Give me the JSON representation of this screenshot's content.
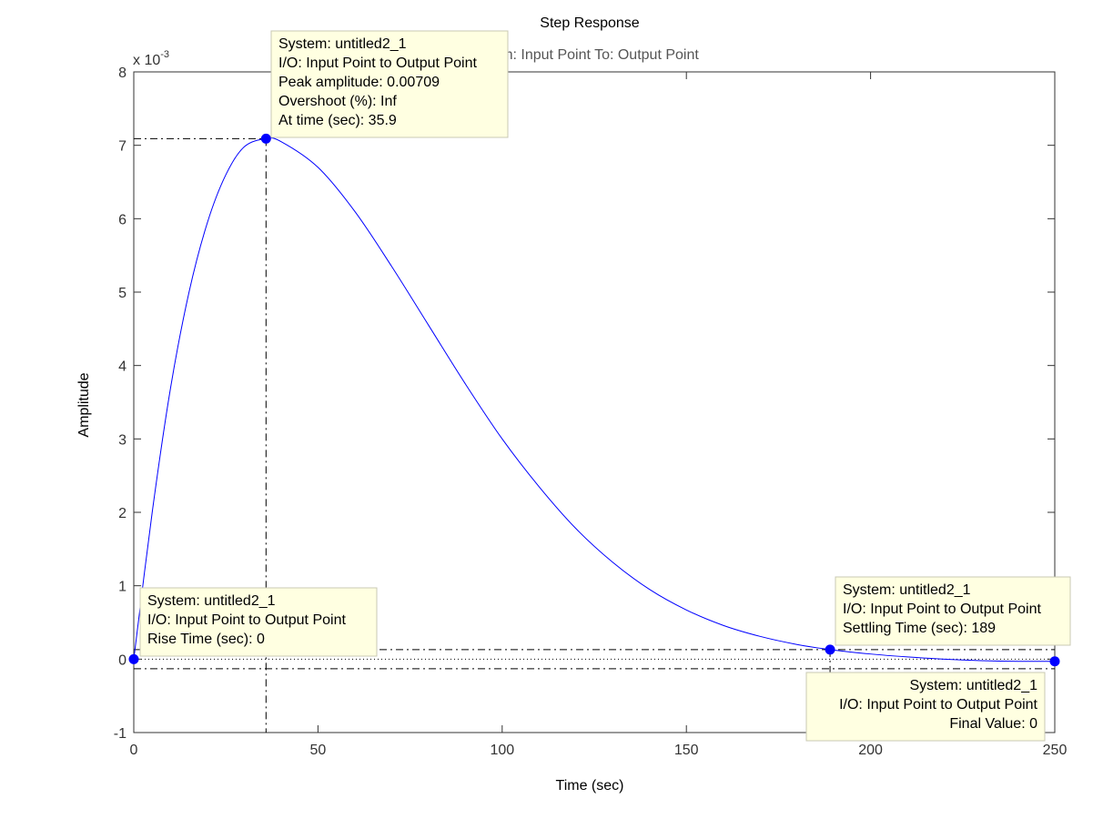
{
  "chart_data": {
    "type": "line",
    "title": "Step Response",
    "subtitle": "From: Input Point  To: Output Point",
    "xlabel": "Time (sec)",
    "ylabel": "Amplitude",
    "y_exponent_label": "x 10",
    "y_exponent_power": "-3",
    "xlim": [
      0,
      250
    ],
    "ylim": [
      -1,
      8
    ],
    "xticks": [
      0,
      50,
      100,
      150,
      200,
      250
    ],
    "yticks": [
      -1,
      0,
      1,
      2,
      3,
      4,
      5,
      6,
      7,
      8
    ],
    "series_color": "#0000ff",
    "series": [
      {
        "x": [
          0,
          5,
          10,
          15,
          20,
          25,
          30,
          35.9,
          40,
          50,
          60,
          70,
          80,
          90,
          100,
          110,
          120,
          130,
          140,
          150,
          160,
          170,
          180,
          189,
          200,
          210,
          220,
          230,
          240,
          250
        ],
        "y": [
          0,
          2.0,
          3.7,
          5.0,
          5.95,
          6.6,
          6.98,
          7.09,
          7.05,
          6.7,
          6.1,
          5.35,
          4.55,
          3.75,
          3.0,
          2.35,
          1.78,
          1.32,
          0.95,
          0.67,
          0.46,
          0.31,
          0.2,
          0.13,
          0.07,
          0.03,
          0.0,
          -0.02,
          -0.03,
          -0.03
        ]
      }
    ],
    "settling_band": [
      0.13,
      -0.13
    ],
    "markers": [
      {
        "name": "peak",
        "x": 35.9,
        "y": 7.09,
        "lines": [
          "System: untitled2_1",
          "I/O: Input Point to Output Point",
          "Peak amplitude: 0.00709",
          "Overshoot (%): Inf",
          "At time (sec): 35.9"
        ]
      },
      {
        "name": "rise",
        "x": 0,
        "y": 0,
        "lines": [
          "System: untitled2_1",
          "I/O: Input Point to Output Point",
          "Rise Time (sec): 0"
        ]
      },
      {
        "name": "settling",
        "x": 189,
        "y": 0.13,
        "lines": [
          "System: untitled2_1",
          "I/O: Input Point to Output Point",
          "Settling Time (sec): 189"
        ]
      },
      {
        "name": "final",
        "x": 250,
        "y": -0.03,
        "lines": [
          "System: untitled2_1",
          "I/O: Input Point to Output Point",
          "Final Value: 0"
        ]
      }
    ]
  }
}
